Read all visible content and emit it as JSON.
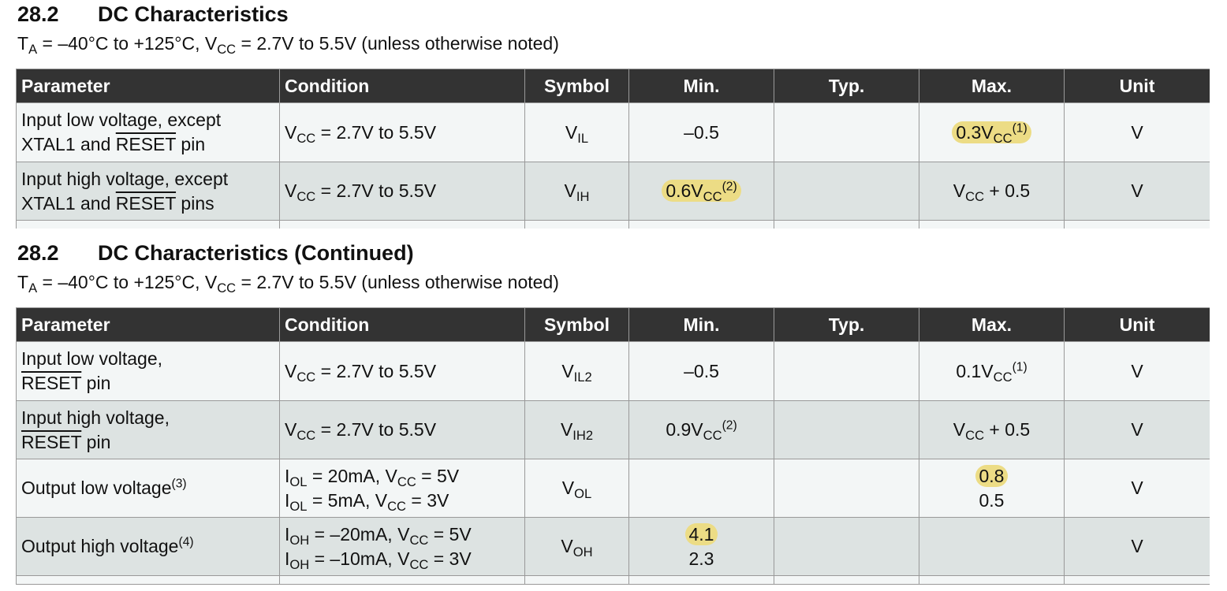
{
  "section1": {
    "number": "28.2",
    "title": "DC Characteristics",
    "conditions": {
      "t": "T",
      "t_sub": "A",
      "a": " = –40°C to +125°C, V",
      "v_sub": "CC",
      "b": " = 2.7V to 5.5V (unless otherwise noted)"
    }
  },
  "section2": {
    "number": "28.2",
    "title": "DC Characteristics (Continued)",
    "conditions": {
      "t": "T",
      "t_sub": "A",
      "a": " = –40°C to +125°C, V",
      "v_sub": "CC",
      "b": " = 2.7V to 5.5V (unless otherwise noted)"
    }
  },
  "headers": {
    "parameter": "Parameter",
    "condition": "Condition",
    "symbol": "Symbol",
    "min": "Min.",
    "typ": "Typ.",
    "max": "Max.",
    "unit": "Unit"
  },
  "common": {
    "v": "V",
    "cc": "CC",
    "cond_range": " = 2.7V to 5.5V",
    "unit_v": "V",
    "plus_half": " + 0.5",
    "neg_half": "–0.5",
    "xtal_and": "XTAL1 and ",
    "reset": "RESET"
  },
  "table1": {
    "row1": {
      "param_line1": "Input low voltage, except",
      "param_pin": " pin",
      "sym_sub": "IL",
      "max_val": "0.3V",
      "max_note": "(1)"
    },
    "row2": {
      "param_line1": "Input high voltage, except",
      "param_pins": " pins",
      "sym_sub": "IH",
      "min_val": "0.6V",
      "min_note": "(2)"
    }
  },
  "table2": {
    "row1": {
      "param_line1": "Input low voltage,",
      "param_pin": " pin",
      "sym_sub": "IL2",
      "max_val": "0.1V",
      "max_note": "(1)"
    },
    "row2": {
      "param_line1": "Input high voltage,",
      "param_pin": " pin",
      "sym_sub": "IH2",
      "min_val": "0.9V",
      "min_note": "(2)"
    },
    "row3": {
      "param": "Output low voltage",
      "param_note": "(3)",
      "cond1_i": "I",
      "cond1_isub": "OL",
      "cond1_a": " = 20mA, V",
      "cond1_b": " = 5V",
      "cond2_i": "I",
      "cond2_isub": "OL",
      "cond2_a": " = 5mA, V",
      "cond2_b": " = 3V",
      "sym_sub": "OL",
      "max1": "0.8",
      "max2": "0.5"
    },
    "row4": {
      "param": "Output high voltage",
      "param_note": "(4)",
      "cond1_i": "I",
      "cond1_isub": "OH",
      "cond1_a": " = –20mA, V",
      "cond1_b": " = 5V",
      "cond2_i": "I",
      "cond2_isub": "OH",
      "cond2_a": " = –10mA, V",
      "cond2_b": " = 3V",
      "sym_sub": "OH",
      "min1": "4.1",
      "min2": "2.3"
    }
  },
  "colors": {
    "header_bg": "#333333",
    "row_light": "#f3f6f6",
    "row_dark": "#dde3e2",
    "highlight": "#ecdc85"
  }
}
